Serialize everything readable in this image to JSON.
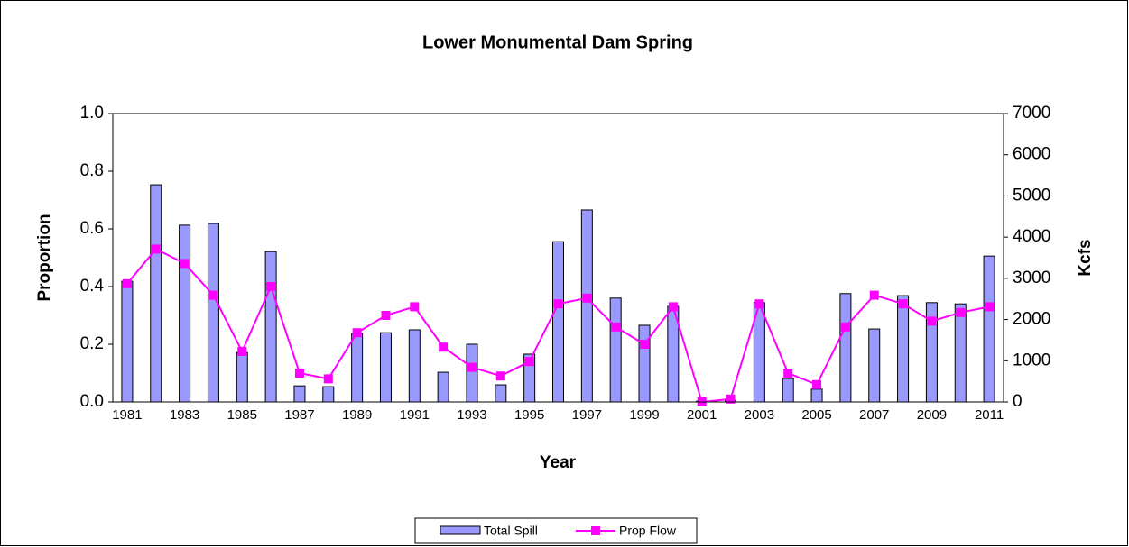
{
  "chart_data": {
    "type": "combo",
    "title": "Lower Monumental Dam Spring",
    "x_label": "Year",
    "y_label": "Proportion",
    "y2_label": "Kcfs",
    "categories": [
      "1981",
      null,
      "1983",
      null,
      "1985",
      null,
      "1987",
      null,
      "1989",
      null,
      "1991",
      null,
      "1993",
      null,
      "1995",
      null,
      "1997",
      null,
      "1999",
      null,
      "2001",
      null,
      "2003",
      null,
      "2005",
      null,
      "2007",
      null,
      "2009",
      null,
      "2011"
    ],
    "series": [
      {
        "name": "Total Spill",
        "type": "bar",
        "axis": "y2",
        "color": "#9999ff",
        "values": [
          2930,
          5270,
          4290,
          4330,
          1200,
          3650,
          390,
          370,
          1660,
          1680,
          1750,
          720,
          1400,
          415,
          1160,
          3890,
          4660,
          2520,
          1860,
          2320,
          20,
          40,
          2410,
          570,
          310,
          2630,
          1770,
          2580,
          2410,
          2380,
          3540
        ]
      },
      {
        "name": "Prop Flow",
        "type": "line",
        "axis": "y",
        "color": "#ff00ff",
        "values": [
          0.41,
          0.53,
          0.48,
          0.37,
          0.175,
          0.4,
          0.1,
          0.08,
          0.24,
          0.3,
          0.33,
          0.19,
          0.12,
          0.09,
          0.14,
          0.34,
          0.36,
          0.26,
          0.2,
          0.33,
          0.0,
          0.01,
          0.34,
          0.1,
          0.06,
          0.26,
          0.37,
          0.34,
          0.28,
          0.31,
          0.33
        ]
      }
    ],
    "ylim": [
      0,
      1
    ],
    "yticks": [
      {
        "value": 0,
        "label": "0.0"
      },
      0.2,
      0.4,
      0.6,
      0.8,
      {
        "value": 1,
        "label": "1.0"
      }
    ],
    "y2lim": [
      0,
      7000
    ],
    "y2ticks": [
      0,
      1000,
      2000,
      3000,
      4000,
      5000,
      6000,
      7000
    ],
    "legend": "bottom"
  }
}
